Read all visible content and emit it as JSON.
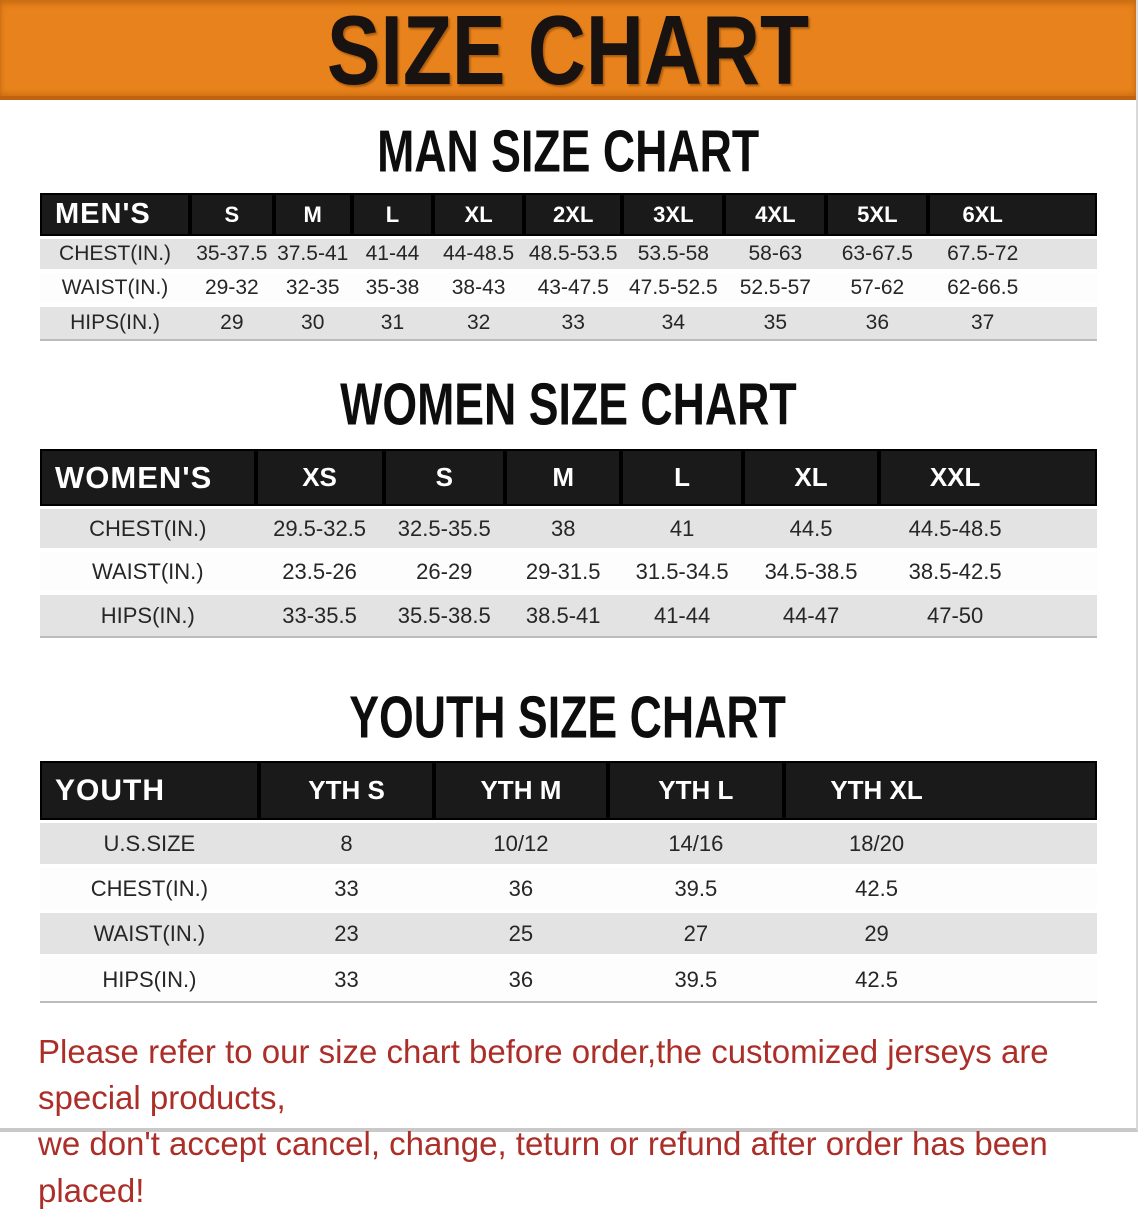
{
  "banner": {
    "title": "SIZE CHART"
  },
  "sections": {
    "men": {
      "title": "MAN SIZE CHART",
      "table": {
        "header": [
          "MEN'S",
          "S",
          "M",
          "L",
          "XL",
          "2XL",
          "3XL",
          "4XL",
          "5XL",
          "6XL"
        ],
        "rows": [
          {
            "label": "CHEST(IN.)",
            "values": [
              "35-37.5",
              "37.5-41",
              "41-44",
              "44-48.5",
              "48.5-53.5",
              "53.5-58",
              "58-63",
              "63-67.5",
              "67.5-72"
            ]
          },
          {
            "label": "WAIST(IN.)",
            "values": [
              "29-32",
              "32-35",
              "35-38",
              "38-43",
              "43-47.5",
              "47.5-52.5",
              "52.5-57",
              "57-62",
              "62-66.5"
            ]
          },
          {
            "label": "HIPS(IN.)",
            "values": [
              "29",
              "30",
              "31",
              "32",
              "33",
              "34",
              "35",
              "36",
              "37"
            ]
          }
        ]
      }
    },
    "women": {
      "title": "WOMEN SIZE CHART",
      "table": {
        "header": [
          "WOMEN'S",
          "XS",
          "S",
          "M",
          "L",
          "XL",
          "XXL"
        ],
        "rows": [
          {
            "label": "CHEST(IN.)",
            "values": [
              "29.5-32.5",
              "32.5-35.5",
              "38",
              "41",
              "44.5",
              "44.5-48.5"
            ]
          },
          {
            "label": "WAIST(IN.)",
            "values": [
              "23.5-26",
              "26-29",
              "29-31.5",
              "31.5-34.5",
              "34.5-38.5",
              "38.5-42.5"
            ]
          },
          {
            "label": "HIPS(IN.)",
            "values": [
              "33-35.5",
              "35.5-38.5",
              "38.5-41",
              "41-44",
              "44-47",
              "47-50"
            ]
          }
        ]
      }
    },
    "youth": {
      "title": "YOUTH SIZE CHART",
      "table": {
        "header": [
          "YOUTH",
          "YTH S",
          "YTH M",
          "YTH L",
          "YTH XL"
        ],
        "rows": [
          {
            "label": "U.S.SIZE",
            "values": [
              "8",
              "10/12",
              "14/16",
              "18/20"
            ]
          },
          {
            "label": "CHEST(IN.)",
            "values": [
              "33",
              "36",
              "39.5",
              "42.5"
            ]
          },
          {
            "label": "WAIST(IN.)",
            "values": [
              "23",
              "25",
              "27",
              "29"
            ]
          },
          {
            "label": "HIPS(IN.)",
            "values": [
              "33",
              "36",
              "39.5",
              "42.5"
            ]
          }
        ]
      }
    }
  },
  "footer": {
    "line1": "Please refer to our size chart before order,the customized jerseys are special products,",
    "line2": "we don't accept cancel, change, teturn or refund after order has been placed!"
  },
  "colors": {
    "banner_bg": "#e8821c",
    "table_header_bg": "#1a1a1a",
    "row_alt_gray": "#e3e3e3",
    "footer_text": "#ab2e28"
  }
}
